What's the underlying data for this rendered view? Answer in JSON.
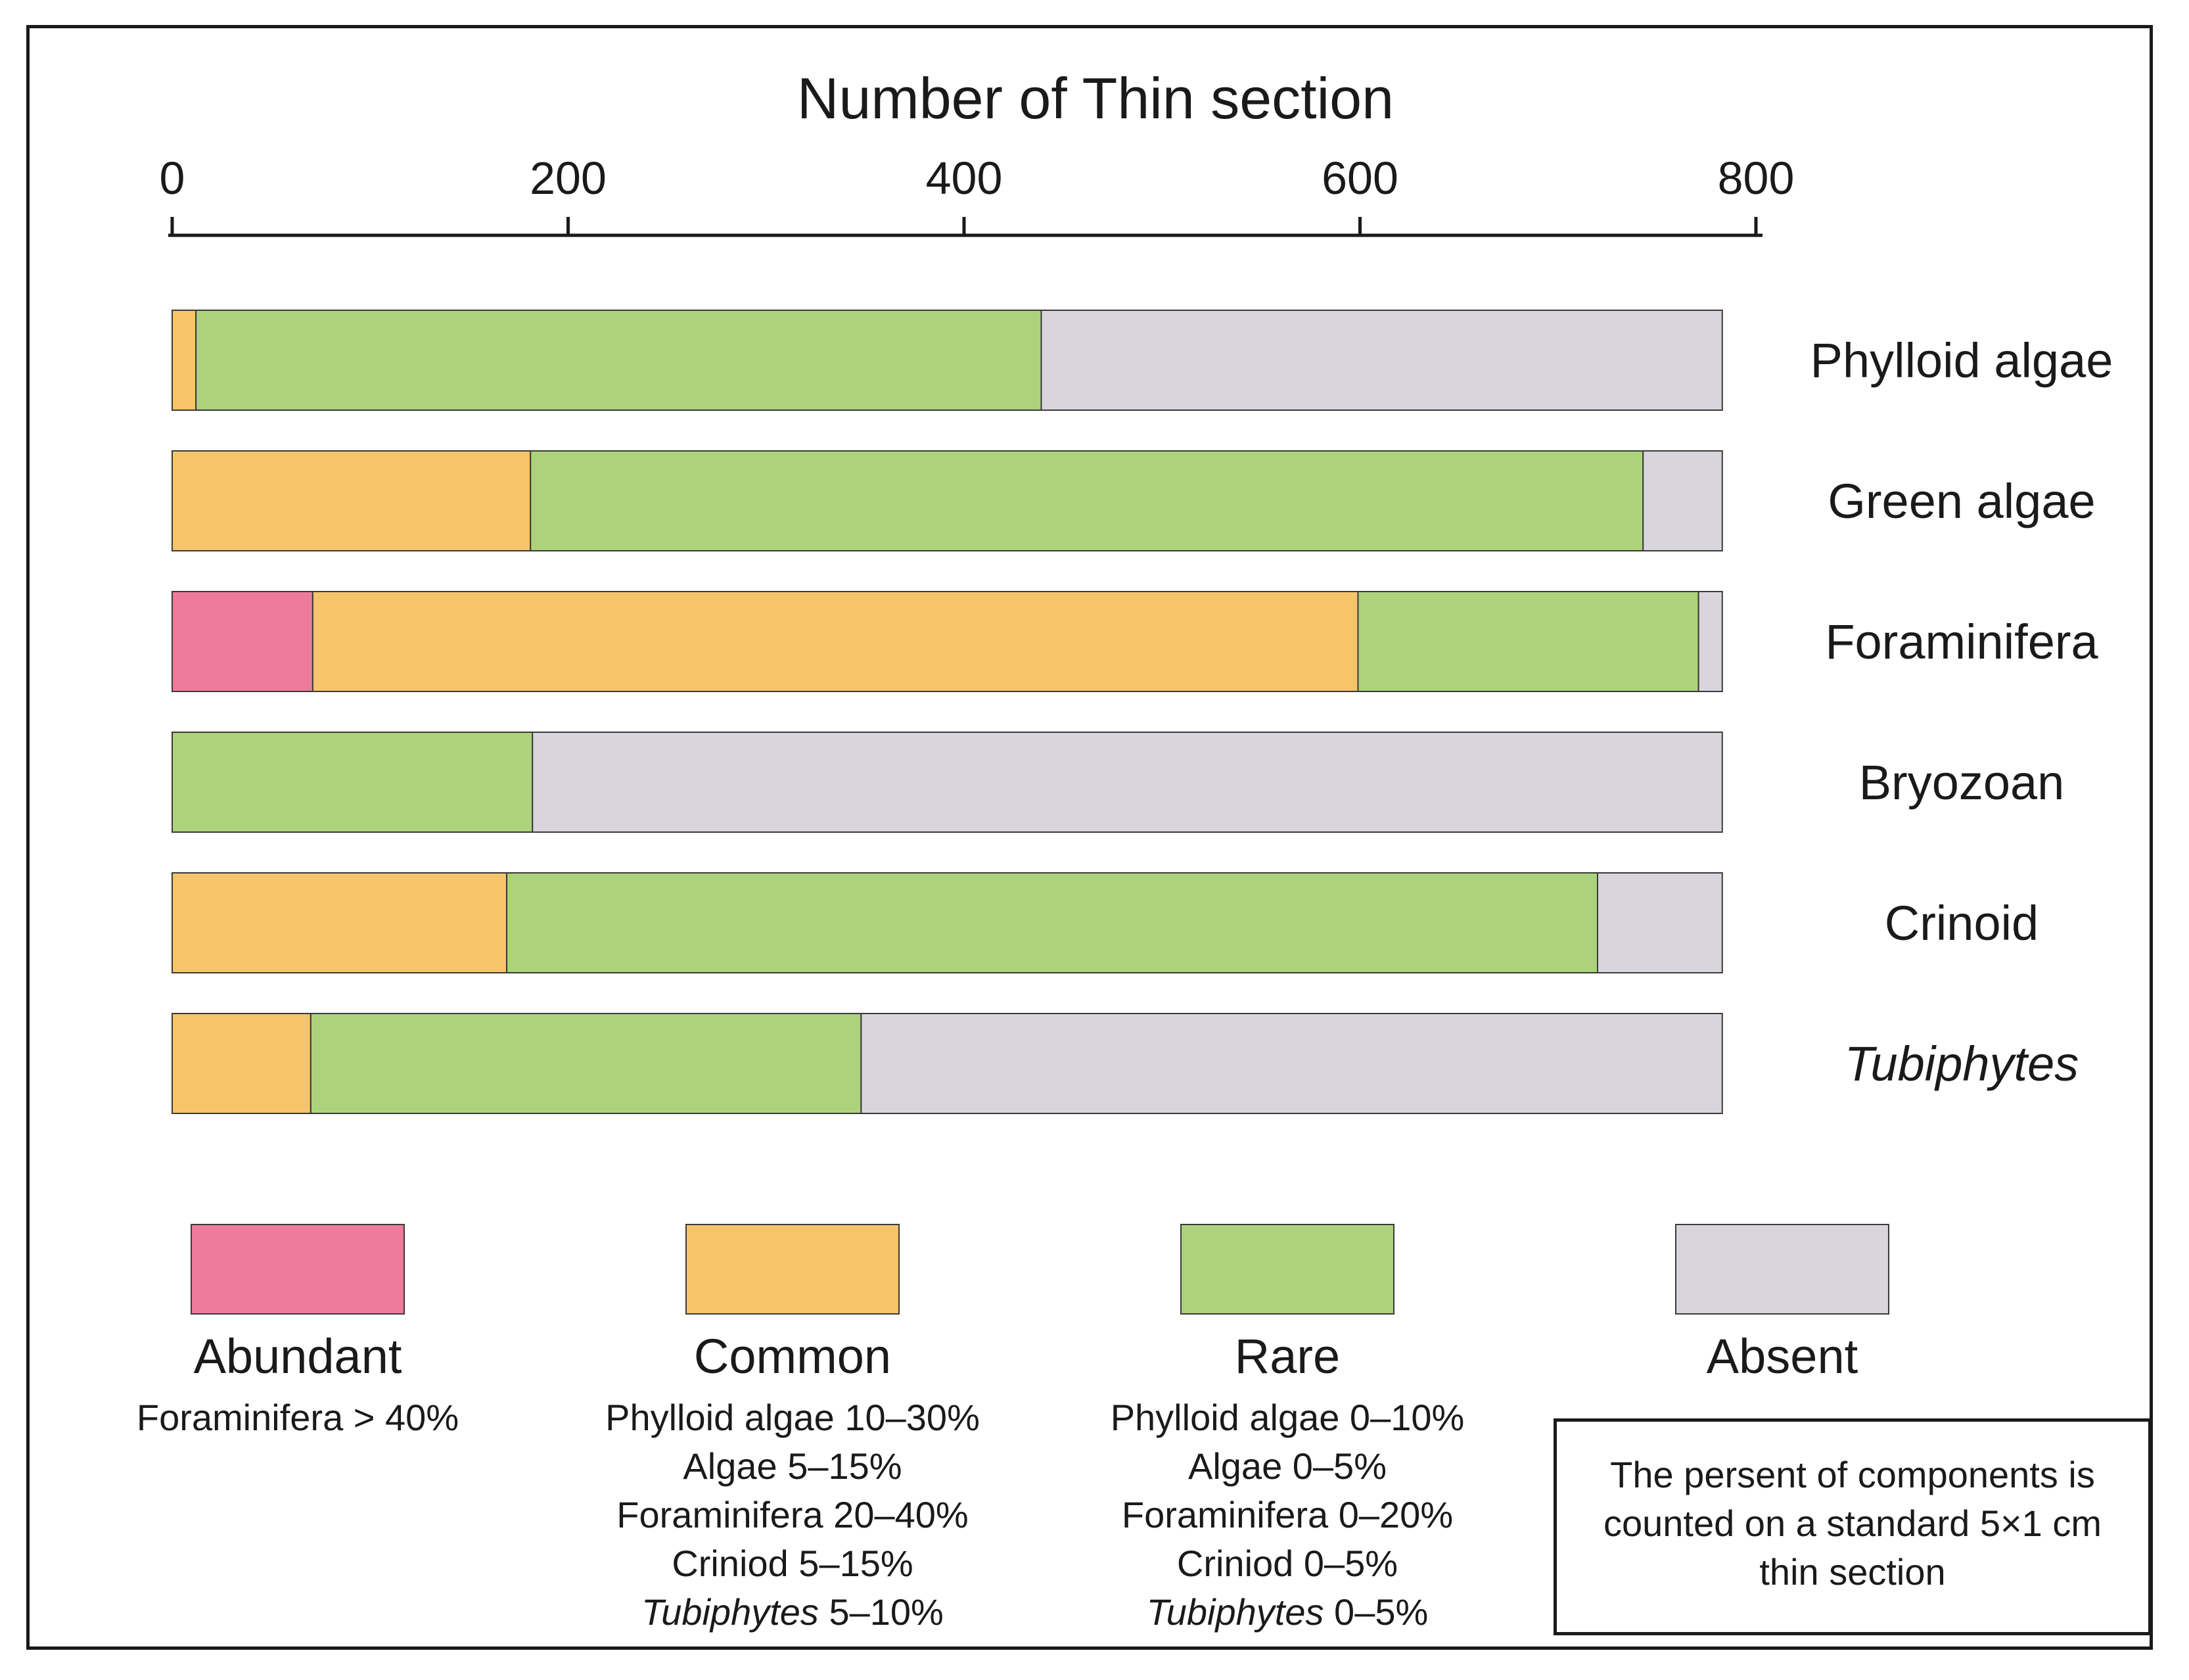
{
  "chart_data": {
    "type": "bar",
    "orientation": "horizontal-stacked",
    "title": "Number of Thin section",
    "xlim": [
      0,
      800
    ],
    "x_ticks": [
      0,
      200,
      400,
      600,
      800
    ],
    "x_tick_labels": [
      "0",
      "200",
      "400",
      "600",
      "800"
    ],
    "total": 783,
    "categories": [
      "Phylloid algae",
      "Green algae",
      "Foraminifera",
      "Bryozoan",
      "Crinoid",
      "Tubiphytes"
    ],
    "category_italic": [
      false,
      false,
      false,
      false,
      false,
      true
    ],
    "series": [
      {
        "name": "Abundant",
        "color": "#ee7b9b",
        "values": [
          0,
          0,
          71,
          0,
          0,
          0
        ]
      },
      {
        "name": "Common",
        "color": "#f6c46a",
        "values": [
          12,
          181,
          528,
          0,
          169,
          70
        ]
      },
      {
        "name": "Rare",
        "color": "#acd37c",
        "values": [
          427,
          562,
          172,
          182,
          551,
          278
        ]
      },
      {
        "name": "Absent",
        "color": "#d9d5dd",
        "values": [
          344,
          40,
          12,
          601,
          63,
          435
        ]
      }
    ]
  },
  "legend": [
    {
      "key": "abundant",
      "label": "Abundant",
      "color": "#ee7b9b",
      "lines": [
        {
          "text": "Foraminifera > 40%"
        }
      ]
    },
    {
      "key": "common",
      "label": "Common",
      "color": "#f6c46a",
      "lines": [
        {
          "text": "Phylloid algae 10–30%"
        },
        {
          "text": "Algae 5–15%"
        },
        {
          "text": "Foraminifera 20–40%"
        },
        {
          "text": "Criniod 5–15%"
        },
        {
          "italic": "Tubiphytes",
          "text": " 5–10%"
        }
      ]
    },
    {
      "key": "rare",
      "label": "Rare",
      "color": "#acd37c",
      "lines": [
        {
          "text": "Phylloid algae 0–10%"
        },
        {
          "text": "Algae 0–5%"
        },
        {
          "text": "Foraminifera 0–20%"
        },
        {
          "text": "Criniod 0–5%"
        },
        {
          "italic": "Tubiphytes",
          "text": " 0–5%"
        }
      ]
    },
    {
      "key": "absent",
      "label": "Absent",
      "color": "#d9d5dd",
      "lines": []
    }
  ],
  "note": {
    "lines": [
      "The persent of  components is",
      "counted on a standard 5×1 cm",
      "thin section"
    ]
  }
}
